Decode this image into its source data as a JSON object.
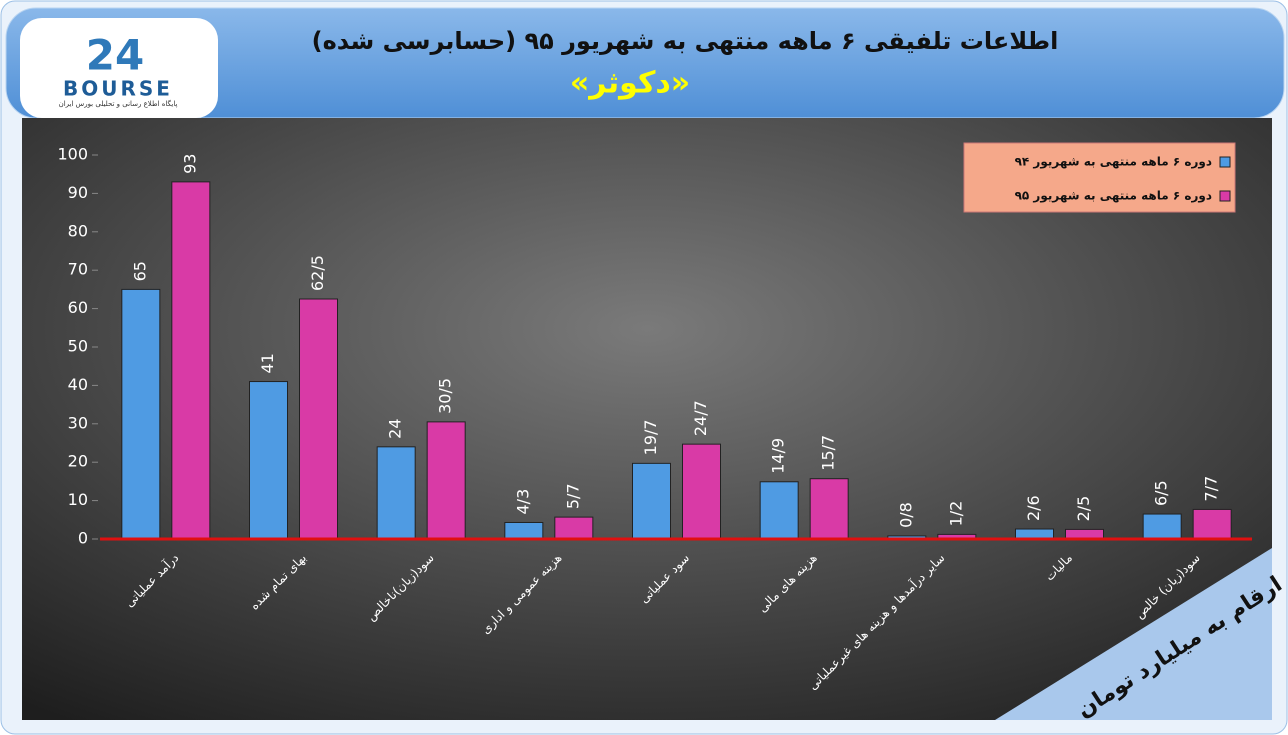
{
  "logo": {
    "number": "24",
    "name": "BOURSE",
    "tagline": "پایگاه اطلاع رسانی و تحلیلی بورس ایران"
  },
  "chart_data": {
    "type": "bar",
    "title": "اطلاعات تلفیقی ۶ ماهه منتهی به شهریور ۹۵ (حسابرسی شده)",
    "subtitle": "«دکوثر»",
    "note": "ارقام به میلیارد تومان",
    "categories": [
      "درآمد عملیاتی",
      "بهای تمام شده",
      "سود(زیان)ناخالص",
      "هزینه عمومی و اداری",
      "سود عملیاتی",
      "هزینه های مالی",
      "سایر درآمدها و هزینه های غیرعملیاتی",
      "مالیات",
      "سود(زیان) خالص"
    ],
    "series": [
      {
        "name": "دوره ۶ ماهه منتهی به شهریور ۹۴",
        "color": "#4f9be3",
        "values": [
          65,
          41,
          24,
          4.3,
          19.7,
          14.9,
          0.8,
          2.6,
          6.5
        ],
        "value_labels": [
          "65",
          "41",
          "24",
          "4/3",
          "19/7",
          "14/9",
          "0/8",
          "2/6",
          "6/5"
        ]
      },
      {
        "name": "دوره ۶ ماهه منتهی به شهریور ۹۵",
        "color": "#d93aa6",
        "values": [
          93,
          62.5,
          30.5,
          5.7,
          24.7,
          15.7,
          1.2,
          2.5,
          7.7
        ],
        "value_labels": [
          "93",
          "62/5",
          "30/5",
          "5/7",
          "24/7",
          "15/7",
          "1/2",
          "2/5",
          "7/7"
        ]
      }
    ],
    "ylim": [
      0,
      100
    ],
    "yticks": [
      0,
      10,
      20,
      30,
      40,
      50,
      60,
      70,
      80,
      90,
      100
    ],
    "legend": "top-right"
  }
}
